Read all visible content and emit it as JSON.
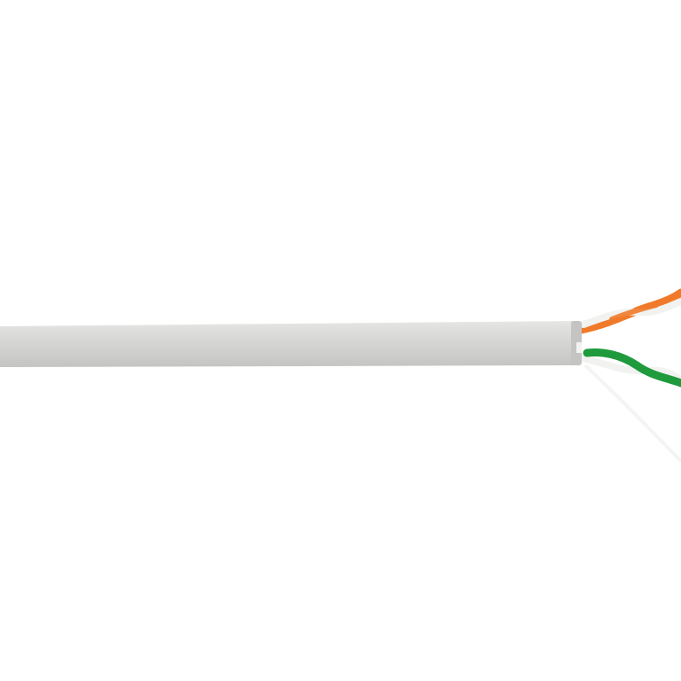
{
  "image": {
    "subject": "twisted-pair-cable",
    "colors": {
      "background": "#ffffff",
      "jacket": "#d9d9d7",
      "jacket_shadow": "#c4c4c2",
      "jacket_highlight": "#e6e6e4",
      "orange_wire": "#f07a2a",
      "green_wire": "#1f9a3c",
      "white_wire": "#f2f2f0",
      "rip_cord": "#f4f4f4"
    }
  }
}
